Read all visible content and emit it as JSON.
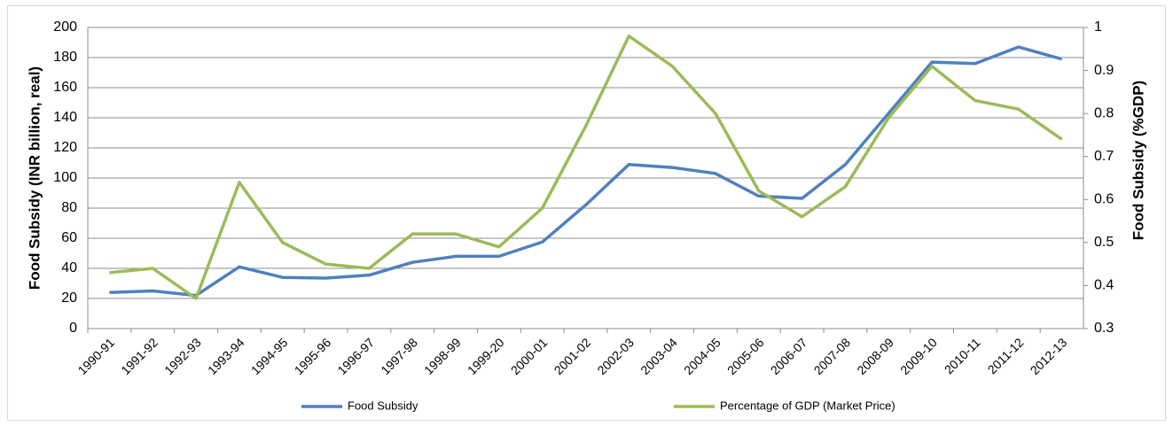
{
  "chart_data": {
    "type": "line",
    "categories": [
      "1990-91",
      "1991-92",
      "1992-93",
      "1993-94",
      "1994-95",
      "1995-96",
      "1996-97",
      "1997-98",
      "1998-99",
      "1999-20",
      "2000-01",
      "2001-02",
      "2002-03",
      "2003-04",
      "2004-05",
      "2005-06",
      "2006-07",
      "2007-08",
      "2008-09",
      "2009-10",
      "2010-11",
      "2011-12",
      "2012-13"
    ],
    "series": [
      {
        "name": "Food Subsidy",
        "color": "#4f81bd",
        "values": [
          24,
          25,
          22,
          41,
          34,
          33.5,
          35.5,
          44,
          48,
          48,
          57.5,
          82,
          109,
          107,
          103,
          88,
          86.5,
          109,
          143,
          177,
          176,
          187,
          179
        ]
      },
      {
        "name": "Percentage of GDP (Market Price)",
        "color": "#9bbb59",
        "axis": "y2",
        "values": [
          0.43,
          0.44,
          0.37,
          0.64,
          0.5,
          0.45,
          0.44,
          0.52,
          0.52,
          0.49,
          0.58,
          0.77,
          0.98,
          0.91,
          0.8,
          0.62,
          0.56,
          0.63,
          0.79,
          0.91,
          0.83,
          0.81,
          0.74
        ]
      }
    ],
    "y_label": "Food Subsidy (INR billion, real)",
    "y2_label": "Food Subsidy (%GDP)",
    "ylim": [
      0,
      200
    ],
    "yticks": [
      0,
      20,
      40,
      60,
      80,
      100,
      120,
      140,
      160,
      180,
      200
    ],
    "y2lim": [
      0.3,
      1
    ],
    "y2ticks": [
      0.3,
      0.4,
      0.5,
      0.6,
      0.7,
      0.8,
      0.9,
      1
    ],
    "grid": true,
    "legend": "bottom"
  }
}
